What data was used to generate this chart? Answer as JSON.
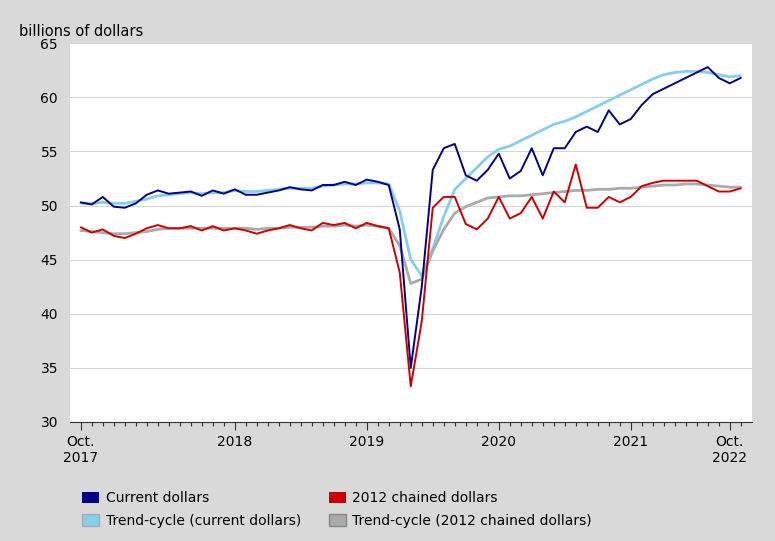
{
  "ylabel": "billions of dollars",
  "ylim": [
    30,
    65
  ],
  "yticks": [
    30,
    35,
    40,
    45,
    50,
    55,
    60,
    65
  ],
  "bg_color": "#d9d9d9",
  "plot_bg_color": "#ffffff",
  "current_dollars_color": "#00008B",
  "trend_current_color": "#87CEEB",
  "chained_dollars_color": "#cc0000",
  "trend_chained_color": "#aaaaaa",
  "current_dollars": [
    50.3,
    50.1,
    50.8,
    49.9,
    49.8,
    50.2,
    51.0,
    51.4,
    51.1,
    51.2,
    51.3,
    50.9,
    51.4,
    51.1,
    51.5,
    51.0,
    51.0,
    51.2,
    51.4,
    51.7,
    51.5,
    51.4,
    51.9,
    51.9,
    52.2,
    51.9,
    52.4,
    52.2,
    51.9,
    47.8,
    35.0,
    42.5,
    53.3,
    55.3,
    55.7,
    52.8,
    52.3,
    53.3,
    54.8,
    52.5,
    53.2,
    55.3,
    52.8,
    55.3,
    55.3,
    56.8,
    57.3,
    56.8,
    58.8,
    57.5,
    58.0,
    59.3,
    60.3,
    60.8,
    61.3,
    61.8,
    62.3,
    62.8,
    61.8,
    61.3,
    61.8
  ],
  "trend_current": [
    50.2,
    50.2,
    50.3,
    50.2,
    50.2,
    50.4,
    50.6,
    50.9,
    51.0,
    51.1,
    51.2,
    51.1,
    51.2,
    51.2,
    51.4,
    51.3,
    51.3,
    51.4,
    51.5,
    51.6,
    51.6,
    51.6,
    51.8,
    51.9,
    52.0,
    52.0,
    52.1,
    52.1,
    52.0,
    49.5,
    45.0,
    43.5,
    46.0,
    49.0,
    51.5,
    52.5,
    53.5,
    54.5,
    55.2,
    55.5,
    56.0,
    56.5,
    57.0,
    57.5,
    57.8,
    58.2,
    58.7,
    59.2,
    59.7,
    60.2,
    60.7,
    61.2,
    61.7,
    62.1,
    62.3,
    62.4,
    62.4,
    62.3,
    62.1,
    61.9,
    62.0
  ],
  "chained_dollars": [
    48.0,
    47.5,
    47.8,
    47.2,
    47.0,
    47.4,
    47.9,
    48.2,
    47.9,
    47.9,
    48.1,
    47.7,
    48.1,
    47.7,
    47.9,
    47.7,
    47.4,
    47.7,
    47.9,
    48.2,
    47.9,
    47.7,
    48.4,
    48.2,
    48.4,
    47.9,
    48.4,
    48.1,
    47.9,
    43.8,
    33.3,
    39.3,
    49.8,
    50.8,
    50.8,
    48.3,
    47.8,
    48.8,
    50.8,
    48.8,
    49.3,
    50.8,
    48.8,
    51.3,
    50.3,
    53.8,
    49.8,
    49.8,
    50.8,
    50.3,
    50.8,
    51.8,
    52.1,
    52.3,
    52.3,
    52.3,
    52.3,
    51.8,
    51.3,
    51.3,
    51.6
  ],
  "trend_chained": [
    47.7,
    47.6,
    47.5,
    47.4,
    47.4,
    47.5,
    47.6,
    47.8,
    47.9,
    47.9,
    47.9,
    47.9,
    47.9,
    47.9,
    47.9,
    47.9,
    47.8,
    47.9,
    47.9,
    48.0,
    48.0,
    48.0,
    48.1,
    48.1,
    48.2,
    48.1,
    48.2,
    48.1,
    47.9,
    46.3,
    42.8,
    43.2,
    45.8,
    47.8,
    49.3,
    49.9,
    50.3,
    50.7,
    50.8,
    50.9,
    50.9,
    51.0,
    51.1,
    51.2,
    51.3,
    51.4,
    51.4,
    51.5,
    51.5,
    51.6,
    51.6,
    51.7,
    51.8,
    51.9,
    51.9,
    52.0,
    52.0,
    51.9,
    51.8,
    51.7,
    51.7
  ],
  "n_months": 60,
  "xtick_positions_idx": [
    0,
    14,
    26,
    38,
    50,
    59
  ],
  "xtick_label_top": [
    "Oct.",
    "",
    "",
    "",
    "",
    "Oct."
  ],
  "xtick_label_bot": [
    "2017",
    "2018",
    "2019",
    "2020",
    "2021",
    "2022"
  ]
}
